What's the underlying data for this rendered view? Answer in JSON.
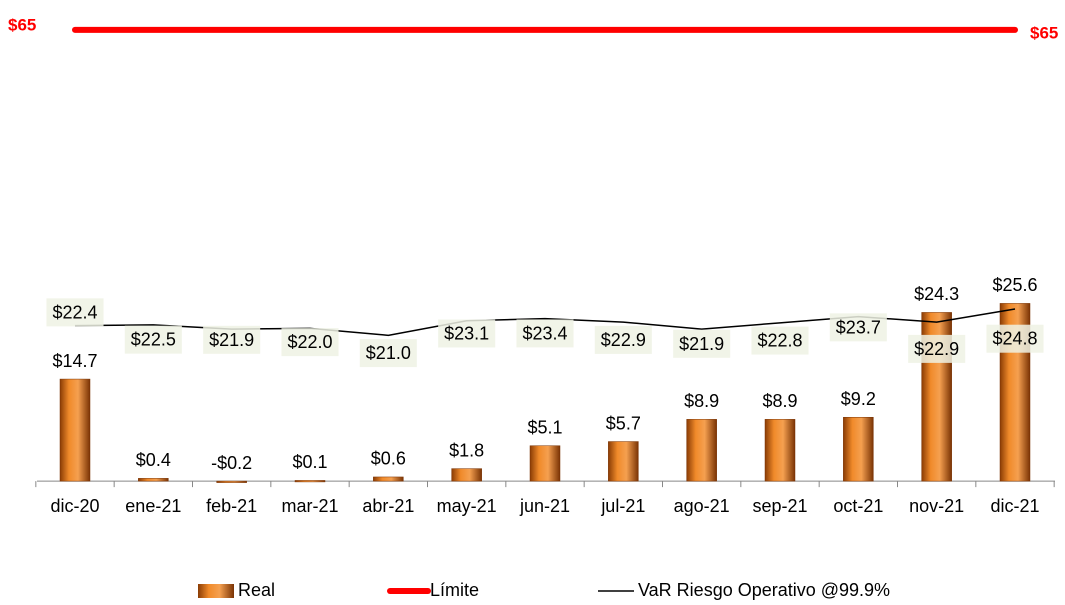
{
  "chart_data": {
    "type": "bar",
    "categories": [
      "dic-20",
      "ene-21",
      "feb-21",
      "mar-21",
      "abr-21",
      "may-21",
      "jun-21",
      "jul-21",
      "ago-21",
      "sep-21",
      "oct-21",
      "nov-21",
      "dic-21"
    ],
    "series": [
      {
        "name": "Real",
        "color": "#e8751a",
        "values": [
          14.7,
          0.4,
          -0.2,
          0.1,
          0.6,
          1.8,
          5.1,
          5.7,
          8.9,
          8.9,
          9.2,
          24.3,
          25.6
        ],
        "value_labels": [
          "$14.7",
          "$0.4",
          "-$0.2",
          "$0.1",
          "$0.6",
          "$1.8",
          "$5.1",
          "$5.7",
          "$8.9",
          "$8.9",
          "$9.2",
          "$24.3",
          "$25.6"
        ]
      },
      {
        "name": "VaR Riesgo Operativo @99.9%",
        "type": "line",
        "color": "#000000",
        "values": [
          22.4,
          22.5,
          21.9,
          22.0,
          21.0,
          23.1,
          23.4,
          22.9,
          21.9,
          22.8,
          23.7,
          22.9,
          24.8
        ],
        "value_labels": [
          "$22.4",
          "$22.5",
          "$21.9",
          "$22.0",
          "$21.0",
          "$23.1",
          "$23.4",
          "$22.9",
          "$21.9",
          "$22.8",
          "$23.7",
          "$22.9",
          "$24.8"
        ]
      }
    ],
    "limit": {
      "name": "Límite",
      "value": 65,
      "color": "#ff0000",
      "value_labels": [
        "$65",
        "$65"
      ]
    },
    "ylim": [
      -2,
      67
    ],
    "legend": "bottom"
  }
}
